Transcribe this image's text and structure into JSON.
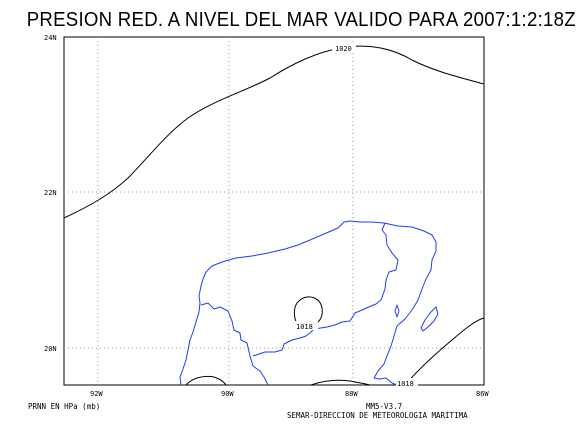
{
  "map": {
    "title": "PRESION RED. A NIVEL DEL MAR VALIDO PARA 2007:1:2:18Z",
    "lat_labels": [
      "24N",
      "22N",
      "20N"
    ],
    "lon_labels": [
      "92W",
      "90W",
      "88W",
      "86W"
    ],
    "isobar_labels": [
      "1020",
      "1018",
      "1018"
    ],
    "colors": {
      "coast": "#1f3bff",
      "isobar": "#000000",
      "grid": "#9a9a9a"
    }
  },
  "footer": {
    "variable": "PRNN EN HPa (mb)",
    "model": "MM5-V3.7",
    "agency": "SEMAR-DIRECCION DE METEOROLOGIA MARITIMA"
  }
}
